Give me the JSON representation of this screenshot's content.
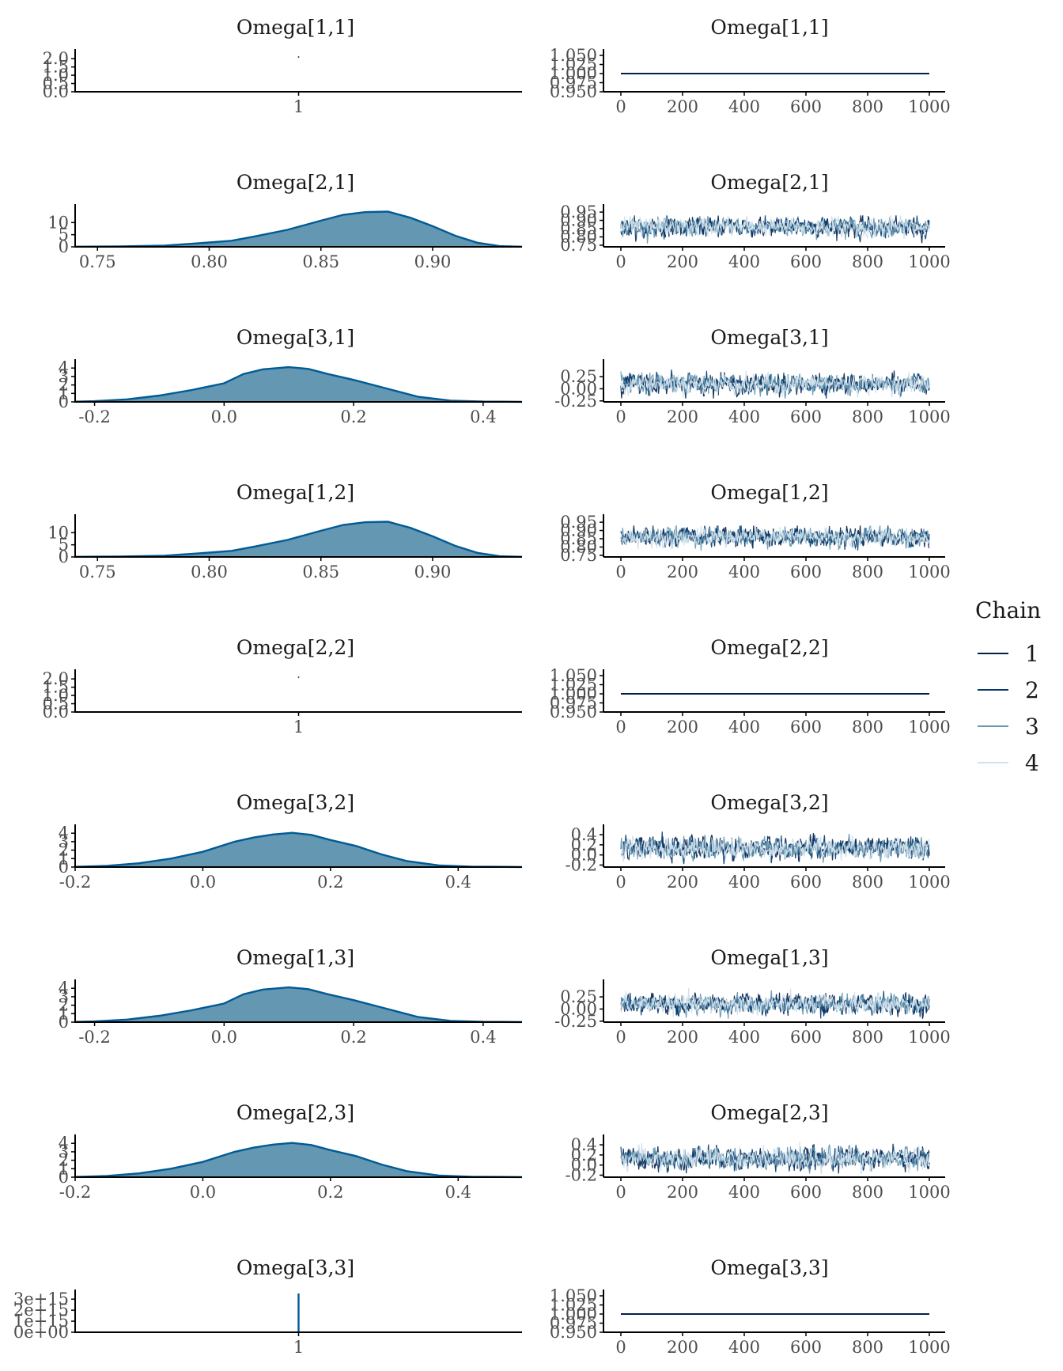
{
  "legend": {
    "title": "Chain",
    "items": [
      {
        "label": "1",
        "color": "#011f4b"
      },
      {
        "label": "2",
        "color": "#03396c"
      },
      {
        "label": "3",
        "color": "#6497b1"
      },
      {
        "label": "4",
        "color": "#d1e1ec"
      }
    ]
  },
  "colors": {
    "density_fill": "#6497b1",
    "density_line": "#005b96",
    "axis": "#000000",
    "tick_text": "#4d4d4d"
  },
  "chart_data": [
    {
      "type": "area",
      "panel": "density",
      "title": "Omega[1,1]",
      "degenerate": true,
      "xlim": [
        0,
        2
      ],
      "x_ticks": [
        1
      ],
      "x_tick_labels": [
        "1"
      ],
      "ylim": [
        0,
        2.2
      ],
      "y_ticks": [
        0,
        0.5,
        1.0,
        1.5,
        2.0
      ],
      "y_tick_labels": [
        "0.0",
        "0.5",
        "1.0",
        "1.5",
        "2.0"
      ],
      "spike": {
        "x": 1,
        "y": 2.1,
        "kind": "dot"
      }
    },
    {
      "type": "line",
      "panel": "trace",
      "title": "Omega[1,1]",
      "xlim": [
        0,
        1000
      ],
      "x_ticks": [
        0,
        200,
        400,
        600,
        800,
        1000
      ],
      "ylim": [
        0.95,
        1.05
      ],
      "y_ticks": [
        0.95,
        0.975,
        1.0,
        1.025,
        1.05
      ],
      "y_tick_labels": [
        "0.950",
        "0.975",
        "1.000",
        "1.025",
        "1.050"
      ],
      "constant": 1.0
    },
    {
      "type": "area",
      "panel": "density",
      "title": "Omega[2,1]",
      "xlim": [
        0.74,
        0.94
      ],
      "x_ticks": [
        0.75,
        0.8,
        0.85,
        0.9
      ],
      "x_tick_labels": [
        "0.75",
        "0.80",
        "0.85",
        "0.90"
      ],
      "ylim": [
        0,
        15
      ],
      "y_ticks": [
        0,
        5,
        10
      ],
      "y_tick_labels": [
        "0",
        "5",
        "10"
      ],
      "x": [
        0.74,
        0.76,
        0.78,
        0.8,
        0.81,
        0.82,
        0.835,
        0.85,
        0.86,
        0.87,
        0.88,
        0.89,
        0.9,
        0.91,
        0.92,
        0.93,
        0.94
      ],
      "y": [
        0.05,
        0.15,
        0.5,
        1.8,
        2.5,
        4.2,
        7.0,
        10.8,
        13.2,
        14.3,
        14.5,
        12.0,
        8.5,
        4.6,
        1.7,
        0.3,
        0.05
      ]
    },
    {
      "type": "line",
      "panel": "trace",
      "title": "Omega[2,1]",
      "xlim": [
        0,
        1000
      ],
      "x_ticks": [
        0,
        200,
        400,
        600,
        800,
        1000
      ],
      "ylim": [
        0.74,
        0.96
      ],
      "y_ticks": [
        0.75,
        0.8,
        0.85,
        0.9,
        0.95
      ],
      "y_tick_labels": [
        "0.75",
        "0.80",
        "0.85",
        "0.90",
        "0.95"
      ],
      "trace_center": 0.86,
      "trace_spread": 0.026,
      "trace_min": 0.76,
      "trace_max": 0.93
    },
    {
      "type": "area",
      "panel": "density",
      "title": "Omega[3,1]",
      "xlim": [
        -0.23,
        0.46
      ],
      "x_ticks": [
        -0.2,
        0.0,
        0.2,
        0.4
      ],
      "x_tick_labels": [
        "-0.2",
        "0.0",
        "0.2",
        "0.4"
      ],
      "ylim": [
        0,
        4.3
      ],
      "y_ticks": [
        0,
        1,
        2,
        3,
        4
      ],
      "y_tick_labels": [
        "0",
        "1",
        "2",
        "3",
        "4"
      ],
      "x": [
        -0.23,
        -0.2,
        -0.15,
        -0.1,
        -0.05,
        0.0,
        0.03,
        0.06,
        0.1,
        0.13,
        0.16,
        0.2,
        0.25,
        0.3,
        0.35,
        0.4,
        0.46
      ],
      "y": [
        0.03,
        0.08,
        0.3,
        0.75,
        1.4,
        2.2,
        3.3,
        3.85,
        4.1,
        3.9,
        3.3,
        2.6,
        1.6,
        0.6,
        0.15,
        0.04,
        0.01
      ]
    },
    {
      "type": "line",
      "panel": "trace",
      "title": "Omega[3,1]",
      "xlim": [
        0,
        1000
      ],
      "x_ticks": [
        0,
        200,
        400,
        600,
        800,
        1000
      ],
      "ylim": [
        -0.27,
        0.48
      ],
      "y_ticks": [
        -0.25,
        0.0,
        0.25
      ],
      "y_tick_labels": [
        "-0.25",
        "0.00",
        "0.25"
      ],
      "trace_center": 0.1,
      "trace_spread": 0.09,
      "trace_min": -0.2,
      "trace_max": 0.44
    },
    {
      "type": "area",
      "panel": "density",
      "title": "Omega[1,2]",
      "xlim": [
        0.74,
        0.94
      ],
      "x_ticks": [
        0.75,
        0.8,
        0.85,
        0.9
      ],
      "x_tick_labels": [
        "0.75",
        "0.80",
        "0.85",
        "0.90"
      ],
      "ylim": [
        0,
        15
      ],
      "y_ticks": [
        0,
        5,
        10
      ],
      "y_tick_labels": [
        "0",
        "5",
        "10"
      ],
      "x": [
        0.74,
        0.76,
        0.78,
        0.8,
        0.81,
        0.82,
        0.835,
        0.85,
        0.86,
        0.87,
        0.88,
        0.89,
        0.9,
        0.91,
        0.92,
        0.93,
        0.94
      ],
      "y": [
        0.05,
        0.15,
        0.5,
        1.8,
        2.5,
        4.2,
        7.0,
        10.8,
        13.2,
        14.3,
        14.5,
        12.0,
        8.5,
        4.6,
        1.7,
        0.3,
        0.05
      ]
    },
    {
      "type": "line",
      "panel": "trace",
      "title": "Omega[1,2]",
      "xlim": [
        0,
        1000
      ],
      "x_ticks": [
        0,
        200,
        400,
        600,
        800,
        1000
      ],
      "ylim": [
        0.74,
        0.96
      ],
      "y_ticks": [
        0.75,
        0.8,
        0.85,
        0.9,
        0.95
      ],
      "y_tick_labels": [
        "0.75",
        "0.80",
        "0.85",
        "0.90",
        "0.95"
      ],
      "trace_center": 0.86,
      "trace_spread": 0.026,
      "trace_min": 0.76,
      "trace_max": 0.93
    },
    {
      "type": "area",
      "panel": "density",
      "title": "Omega[2,2]",
      "degenerate": true,
      "xlim": [
        0,
        2
      ],
      "x_ticks": [
        1
      ],
      "x_tick_labels": [
        "1"
      ],
      "ylim": [
        0,
        2.2
      ],
      "y_ticks": [
        0,
        0.5,
        1.0,
        1.5,
        2.0
      ],
      "y_tick_labels": [
        "0.0",
        "0.5",
        "1.0",
        "1.5",
        "2.0"
      ],
      "spike": {
        "x": 1,
        "y": 2.1,
        "kind": "dot"
      }
    },
    {
      "type": "line",
      "panel": "trace",
      "title": "Omega[2,2]",
      "xlim": [
        0,
        1000
      ],
      "x_ticks": [
        0,
        200,
        400,
        600,
        800,
        1000
      ],
      "ylim": [
        0.95,
        1.05
      ],
      "y_ticks": [
        0.95,
        0.975,
        1.0,
        1.025,
        1.05
      ],
      "y_tick_labels": [
        "0.950",
        "0.975",
        "1.000",
        "1.025",
        "1.050"
      ],
      "constant": 1.0
    },
    {
      "type": "area",
      "panel": "density",
      "title": "Omega[3,2]",
      "xlim": [
        -0.2,
        0.5
      ],
      "x_ticks": [
        -0.2,
        0.0,
        0.2,
        0.4
      ],
      "x_tick_labels": [
        "-0.2",
        "0.0",
        "0.2",
        "0.4"
      ],
      "ylim": [
        0,
        4.3
      ],
      "y_ticks": [
        0,
        1,
        2,
        3,
        4
      ],
      "y_tick_labels": [
        "0",
        "1",
        "2",
        "3",
        "4"
      ],
      "x": [
        -0.2,
        -0.15,
        -0.1,
        -0.05,
        0.0,
        0.05,
        0.08,
        0.11,
        0.14,
        0.17,
        0.2,
        0.24,
        0.28,
        0.32,
        0.37,
        0.42,
        0.5
      ],
      "y": [
        0.03,
        0.15,
        0.45,
        1.0,
        1.8,
        3.0,
        3.5,
        3.85,
        4.05,
        3.8,
        3.2,
        2.5,
        1.5,
        0.7,
        0.2,
        0.05,
        0.01
      ]
    },
    {
      "type": "line",
      "panel": "trace",
      "title": "Omega[3,2]",
      "xlim": [
        0,
        1000
      ],
      "x_ticks": [
        0,
        200,
        400,
        600,
        800,
        1000
      ],
      "ylim": [
        -0.24,
        0.48
      ],
      "y_ticks": [
        -0.2,
        0.0,
        0.2,
        0.4
      ],
      "y_tick_labels": [
        "-0.2",
        "0.0",
        "0.2",
        "0.4"
      ],
      "trace_center": 0.13,
      "trace_spread": 0.095,
      "trace_min": -0.18,
      "trace_max": 0.46
    },
    {
      "type": "area",
      "panel": "density",
      "title": "Omega[1,3]",
      "xlim": [
        -0.23,
        0.46
      ],
      "x_ticks": [
        -0.2,
        0.0,
        0.2,
        0.4
      ],
      "x_tick_labels": [
        "-0.2",
        "0.0",
        "0.2",
        "0.4"
      ],
      "ylim": [
        0,
        4.3
      ],
      "y_ticks": [
        0,
        1,
        2,
        3,
        4
      ],
      "y_tick_labels": [
        "0",
        "1",
        "2",
        "3",
        "4"
      ],
      "x": [
        -0.23,
        -0.2,
        -0.15,
        -0.1,
        -0.05,
        0.0,
        0.03,
        0.06,
        0.1,
        0.13,
        0.16,
        0.2,
        0.25,
        0.3,
        0.35,
        0.4,
        0.46
      ],
      "y": [
        0.03,
        0.08,
        0.3,
        0.75,
        1.4,
        2.2,
        3.3,
        3.85,
        4.1,
        3.9,
        3.3,
        2.6,
        1.6,
        0.6,
        0.15,
        0.04,
        0.01
      ]
    },
    {
      "type": "line",
      "panel": "trace",
      "title": "Omega[1,3]",
      "xlim": [
        0,
        1000
      ],
      "x_ticks": [
        0,
        200,
        400,
        600,
        800,
        1000
      ],
      "ylim": [
        -0.27,
        0.48
      ],
      "y_ticks": [
        -0.25,
        0.0,
        0.25
      ],
      "y_tick_labels": [
        "-0.25",
        "0.00",
        "0.25"
      ],
      "trace_center": 0.1,
      "trace_spread": 0.09,
      "trace_min": -0.2,
      "trace_max": 0.44
    },
    {
      "type": "area",
      "panel": "density",
      "title": "Omega[2,3]",
      "xlim": [
        -0.2,
        0.5
      ],
      "x_ticks": [
        -0.2,
        0.0,
        0.2,
        0.4
      ],
      "x_tick_labels": [
        "-0.2",
        "0.0",
        "0.2",
        "0.4"
      ],
      "ylim": [
        0,
        4.3
      ],
      "y_ticks": [
        0,
        1,
        2,
        3,
        4
      ],
      "y_tick_labels": [
        "0",
        "1",
        "2",
        "3",
        "4"
      ],
      "x": [
        -0.2,
        -0.15,
        -0.1,
        -0.05,
        0.0,
        0.05,
        0.08,
        0.11,
        0.14,
        0.17,
        0.2,
        0.24,
        0.28,
        0.32,
        0.37,
        0.42,
        0.5
      ],
      "y": [
        0.03,
        0.15,
        0.45,
        1.0,
        1.8,
        3.0,
        3.5,
        3.85,
        4.05,
        3.8,
        3.2,
        2.5,
        1.5,
        0.7,
        0.2,
        0.05,
        0.01
      ]
    },
    {
      "type": "line",
      "panel": "trace",
      "title": "Omega[2,3]",
      "xlim": [
        0,
        1000
      ],
      "x_ticks": [
        0,
        200,
        400,
        600,
        800,
        1000
      ],
      "ylim": [
        -0.24,
        0.48
      ],
      "y_ticks": [
        -0.2,
        0.0,
        0.2,
        0.4
      ],
      "y_tick_labels": [
        "-0.2",
        "0.0",
        "0.2",
        "0.4"
      ],
      "trace_center": 0.13,
      "trace_spread": 0.095,
      "trace_min": -0.18,
      "trace_max": 0.46
    },
    {
      "type": "area",
      "panel": "density",
      "title": "Omega[3,3]",
      "degenerate": true,
      "xlim": [
        0,
        2
      ],
      "x_ticks": [
        1
      ],
      "x_tick_labels": [
        "1"
      ],
      "ylim": [
        0,
        3300000000000000.0
      ],
      "y_ticks": [
        0,
        1000000000000000.0,
        2000000000000000.0,
        3000000000000000.0
      ],
      "y_tick_labels": [
        "0e+00",
        "1e+15",
        "2e+15",
        "3e+15"
      ],
      "spike": {
        "x": 1,
        "y": 3300000000000000.0,
        "kind": "line"
      }
    },
    {
      "type": "line",
      "panel": "trace",
      "title": "Omega[3,3]",
      "xlim": [
        0,
        1000
      ],
      "x_ticks": [
        0,
        200,
        400,
        600,
        800,
        1000
      ],
      "ylim": [
        0.95,
        1.05
      ],
      "y_ticks": [
        0.95,
        0.975,
        1.0,
        1.025,
        1.05
      ],
      "y_tick_labels": [
        "0.950",
        "0.975",
        "1.000",
        "1.025",
        "1.050"
      ],
      "constant": 1.0
    }
  ]
}
